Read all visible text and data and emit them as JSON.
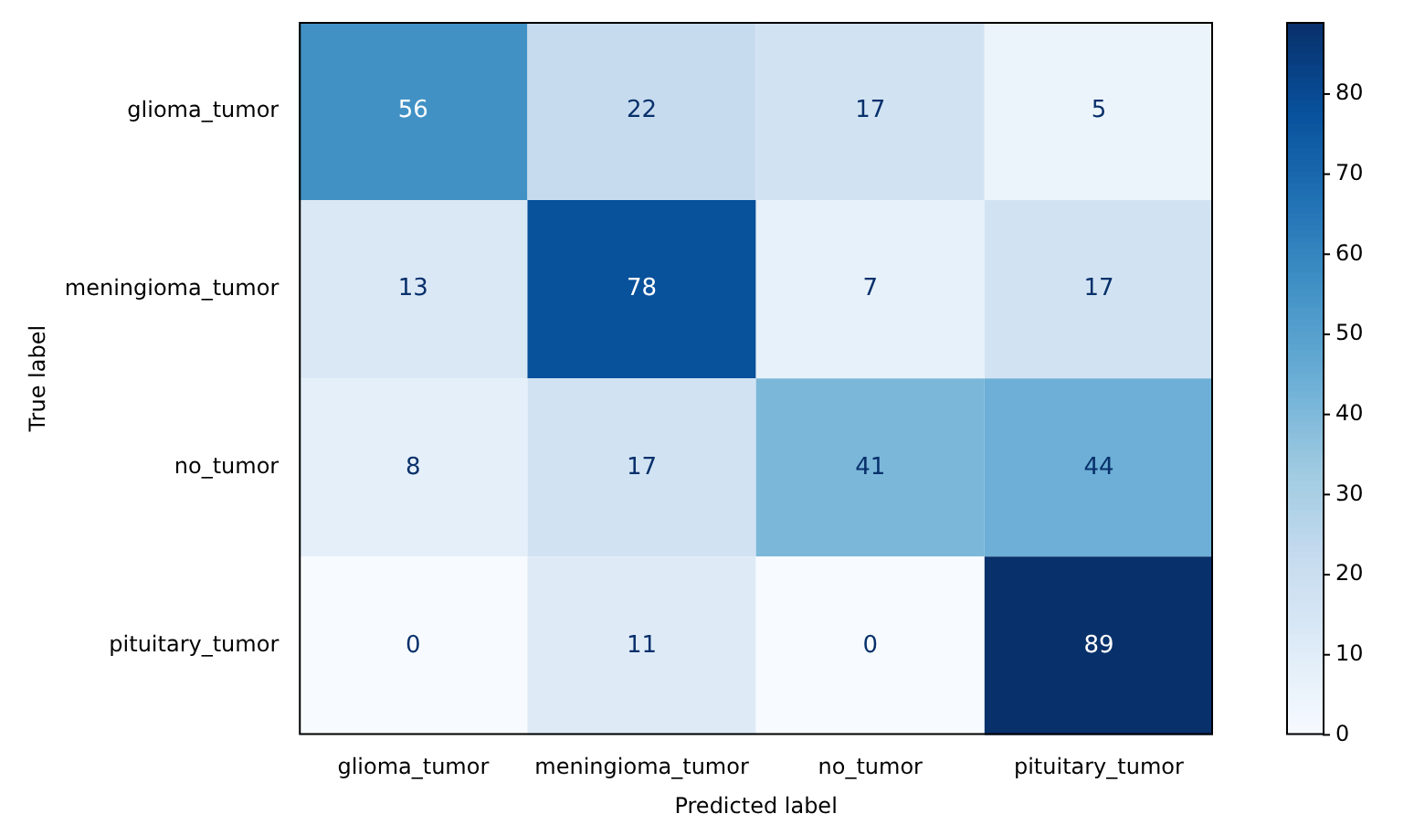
{
  "chart_data": {
    "type": "heatmap",
    "xlabel": "Predicted label",
    "ylabel": "True label",
    "categories": [
      "glioma_tumor",
      "meningioma_tumor",
      "no_tumor",
      "pituitary_tumor"
    ],
    "y_categories": [
      "glioma_tumor",
      "meningioma_tumor",
      "no_tumor",
      "pituitary_tumor"
    ],
    "cells": [
      [
        56,
        22,
        17,
        5
      ],
      [
        13,
        78,
        7,
        17
      ],
      [
        8,
        17,
        41,
        44
      ],
      [
        0,
        11,
        0,
        89
      ]
    ],
    "data_labels": true,
    "clim": [
      0,
      89
    ],
    "cticks": [
      0,
      10,
      20,
      30,
      40,
      50,
      60,
      70,
      80
    ]
  }
}
